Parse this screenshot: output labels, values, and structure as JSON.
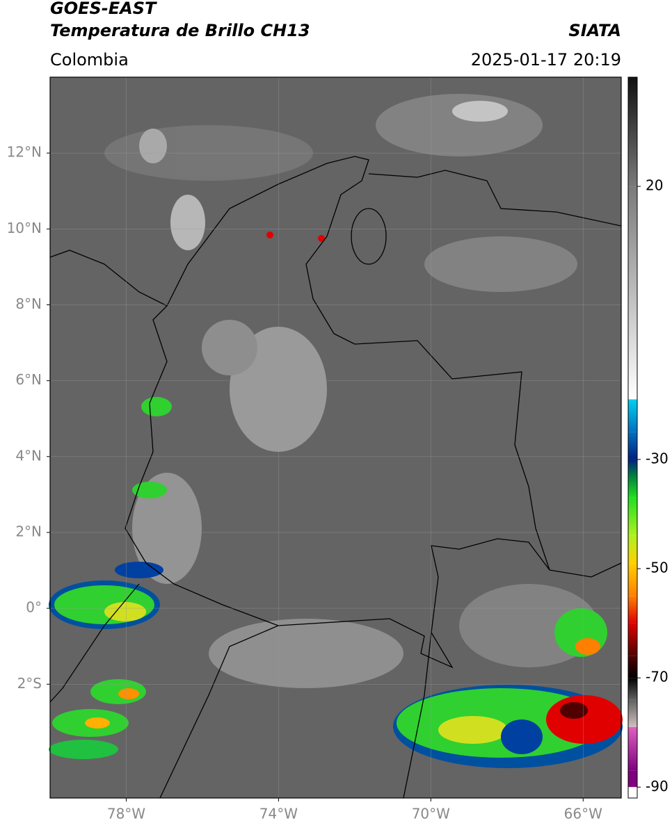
{
  "chart_data": {
    "type": "map",
    "title": "GOES-EAST",
    "subtitle": "Temperatura de Brillo CH13",
    "source": "SIATA",
    "region": "Colombia",
    "datetime": "2025-01-17 20:19",
    "xlim": [
      -80,
      -65
    ],
    "ylim": [
      -5,
      14
    ],
    "xticks": [
      {
        "value": -78,
        "label": "78°W"
      },
      {
        "value": -74,
        "label": "74°W"
      },
      {
        "value": -70,
        "label": "70°W"
      },
      {
        "value": -66,
        "label": "66°W"
      }
    ],
    "yticks": [
      {
        "value": 12,
        "label": "12°N"
      },
      {
        "value": 10,
        "label": "10°N"
      },
      {
        "value": 8,
        "label": "8°N"
      },
      {
        "value": 6,
        "label": "6°N"
      },
      {
        "value": 4,
        "label": "4°N"
      },
      {
        "value": 2,
        "label": "2°N"
      },
      {
        "value": 0,
        "label": "0°"
      },
      {
        "value": -2,
        "label": "2°S"
      }
    ],
    "grid": true,
    "colorbar": {
      "lim": [
        -92,
        40
      ],
      "ticks": [
        20,
        -30,
        -50,
        -70,
        -90
      ],
      "stops": [
        {
          "value": 40,
          "color": "#111111"
        },
        {
          "value": 20,
          "color": "#7a7a7a"
        },
        {
          "value": -19,
          "color": "#ffffff"
        },
        {
          "value": -19,
          "color": "#00d0f0"
        },
        {
          "value": -25,
          "color": "#0070c0"
        },
        {
          "value": -30,
          "color": "#002080"
        },
        {
          "value": -33,
          "color": "#008040"
        },
        {
          "value": -37,
          "color": "#20e020"
        },
        {
          "value": -44,
          "color": "#b0f020"
        },
        {
          "value": -49,
          "color": "#ffd000"
        },
        {
          "value": -55,
          "color": "#ff8000"
        },
        {
          "value": -60,
          "color": "#e00000"
        },
        {
          "value": -66,
          "color": "#500000"
        },
        {
          "value": -70,
          "color": "#000000"
        },
        {
          "value": -74,
          "color": "#606060"
        },
        {
          "value": -79,
          "color": "#d0c0c0"
        },
        {
          "value": -79,
          "color": "#e060c0"
        },
        {
          "value": -87,
          "color": "#800080"
        },
        {
          "value": -90,
          "color": "#800080"
        },
        {
          "value": -90,
          "color": "#ffffff"
        },
        {
          "value": -92,
          "color": "#ffffff"
        }
      ]
    }
  }
}
